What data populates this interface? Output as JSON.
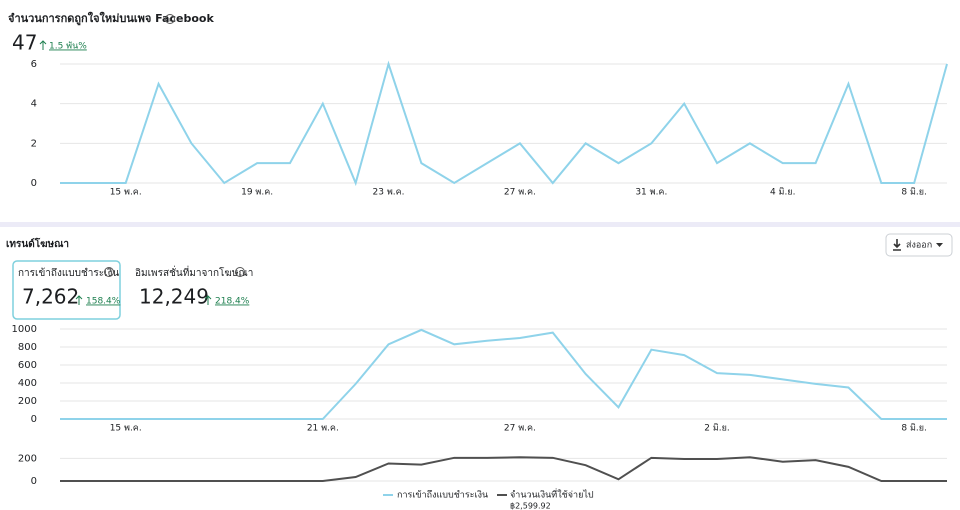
{
  "likes": {
    "title": "จำนวนการกดถูกใจใหม่บนเพจ Facebook",
    "value": "47",
    "change": "1.5 พัน%",
    "chart": {
      "type": "line",
      "categories": [
        null,
        null,
        "15 พ.ค.",
        null,
        null,
        null,
        "19 พ.ค.",
        null,
        null,
        null,
        "23 พ.ค.",
        null,
        null,
        null,
        "27 พ.ค.",
        null,
        null,
        null,
        "31 พ.ค.",
        null,
        null,
        null,
        "4 มิ.ย.",
        null,
        null,
        null,
        "8 มิ.ย.",
        null
      ],
      "series": [
        {
          "color": "#8fd3ea",
          "values": [
            0,
            0,
            0,
            5,
            2,
            0,
            1,
            1,
            4,
            0,
            6,
            1,
            0,
            1,
            2,
            0,
            2,
            1,
            2,
            4,
            1,
            2,
            1,
            1,
            5,
            0,
            0,
            6
          ]
        }
      ],
      "ylim": [
        0,
        6
      ],
      "yticks": [
        0,
        2,
        4,
        6
      ],
      "grid": true
    }
  },
  "trends": {
    "title": "เทรนด์โฆษณา",
    "export_button": "ส่งออก",
    "metrics": [
      {
        "label": "การเข้าถึงแบบชำระเงิน",
        "value": "7,262",
        "change": "158.4%"
      },
      {
        "label": "อิมเพรสชั่นที่มาจากโฆษณา",
        "value": "12,249",
        "change": "218.4%"
      }
    ],
    "reach_chart": {
      "type": "line",
      "categories": [
        null,
        null,
        "15 พ.ค.",
        null,
        null,
        null,
        null,
        null,
        "21 พ.ค.",
        null,
        null,
        null,
        null,
        null,
        "27 พ.ค.",
        null,
        null,
        null,
        null,
        null,
        "2 มิ.ย.",
        null,
        null,
        null,
        null,
        null,
        "8 มิ.ย.",
        null
      ],
      "series": [
        {
          "name": "การเข้าถึงแบบชำระเงิน",
          "color": "#8fd3ea",
          "values": [
            0,
            0,
            0,
            0,
            0,
            0,
            0,
            0,
            0,
            390,
            830,
            990,
            830,
            870,
            900,
            960,
            500,
            130,
            770,
            710,
            510,
            490,
            440,
            390,
            350,
            0,
            0,
            0
          ]
        }
      ],
      "ylim": [
        0,
        1000
      ],
      "yticks": [
        0,
        200,
        400,
        600,
        800,
        1000
      ],
      "grid": true
    },
    "spend_chart": {
      "type": "line",
      "series": [
        {
          "name": "จำนวนเงินที่ใช้จ่ายไป",
          "color": "#505050",
          "values": [
            0,
            0,
            0,
            0,
            0,
            0,
            0,
            0,
            0,
            35,
            155,
            145,
            205,
            205,
            210,
            205,
            140,
            15,
            205,
            195,
            195,
            210,
            170,
            185,
            125,
            0,
            0,
            0
          ]
        }
      ],
      "ylim": [
        0,
        230
      ],
      "yticks": [
        0,
        200
      ],
      "grid": true
    },
    "spend_total": "฿2,599.92"
  }
}
